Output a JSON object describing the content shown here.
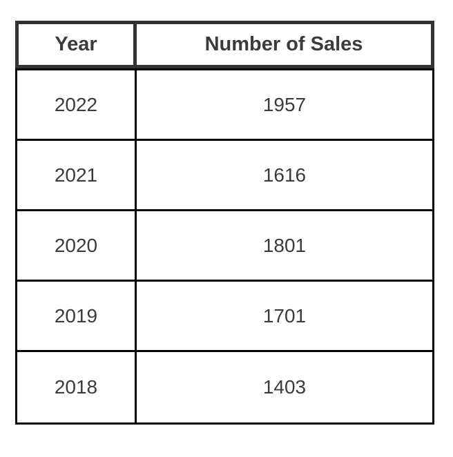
{
  "chart_data": {
    "type": "table",
    "title": "",
    "columns": [
      "Year",
      "Number of Sales"
    ],
    "rows": [
      [
        "2022",
        "1957"
      ],
      [
        "2021",
        "1616"
      ],
      [
        "2020",
        "1801"
      ],
      [
        "2019",
        "1701"
      ],
      [
        "2018",
        "1403"
      ]
    ]
  },
  "colors": {
    "header_border": "#333333",
    "body_border": "#000000",
    "text": "#3b3b3b",
    "background": "#ffffff"
  }
}
